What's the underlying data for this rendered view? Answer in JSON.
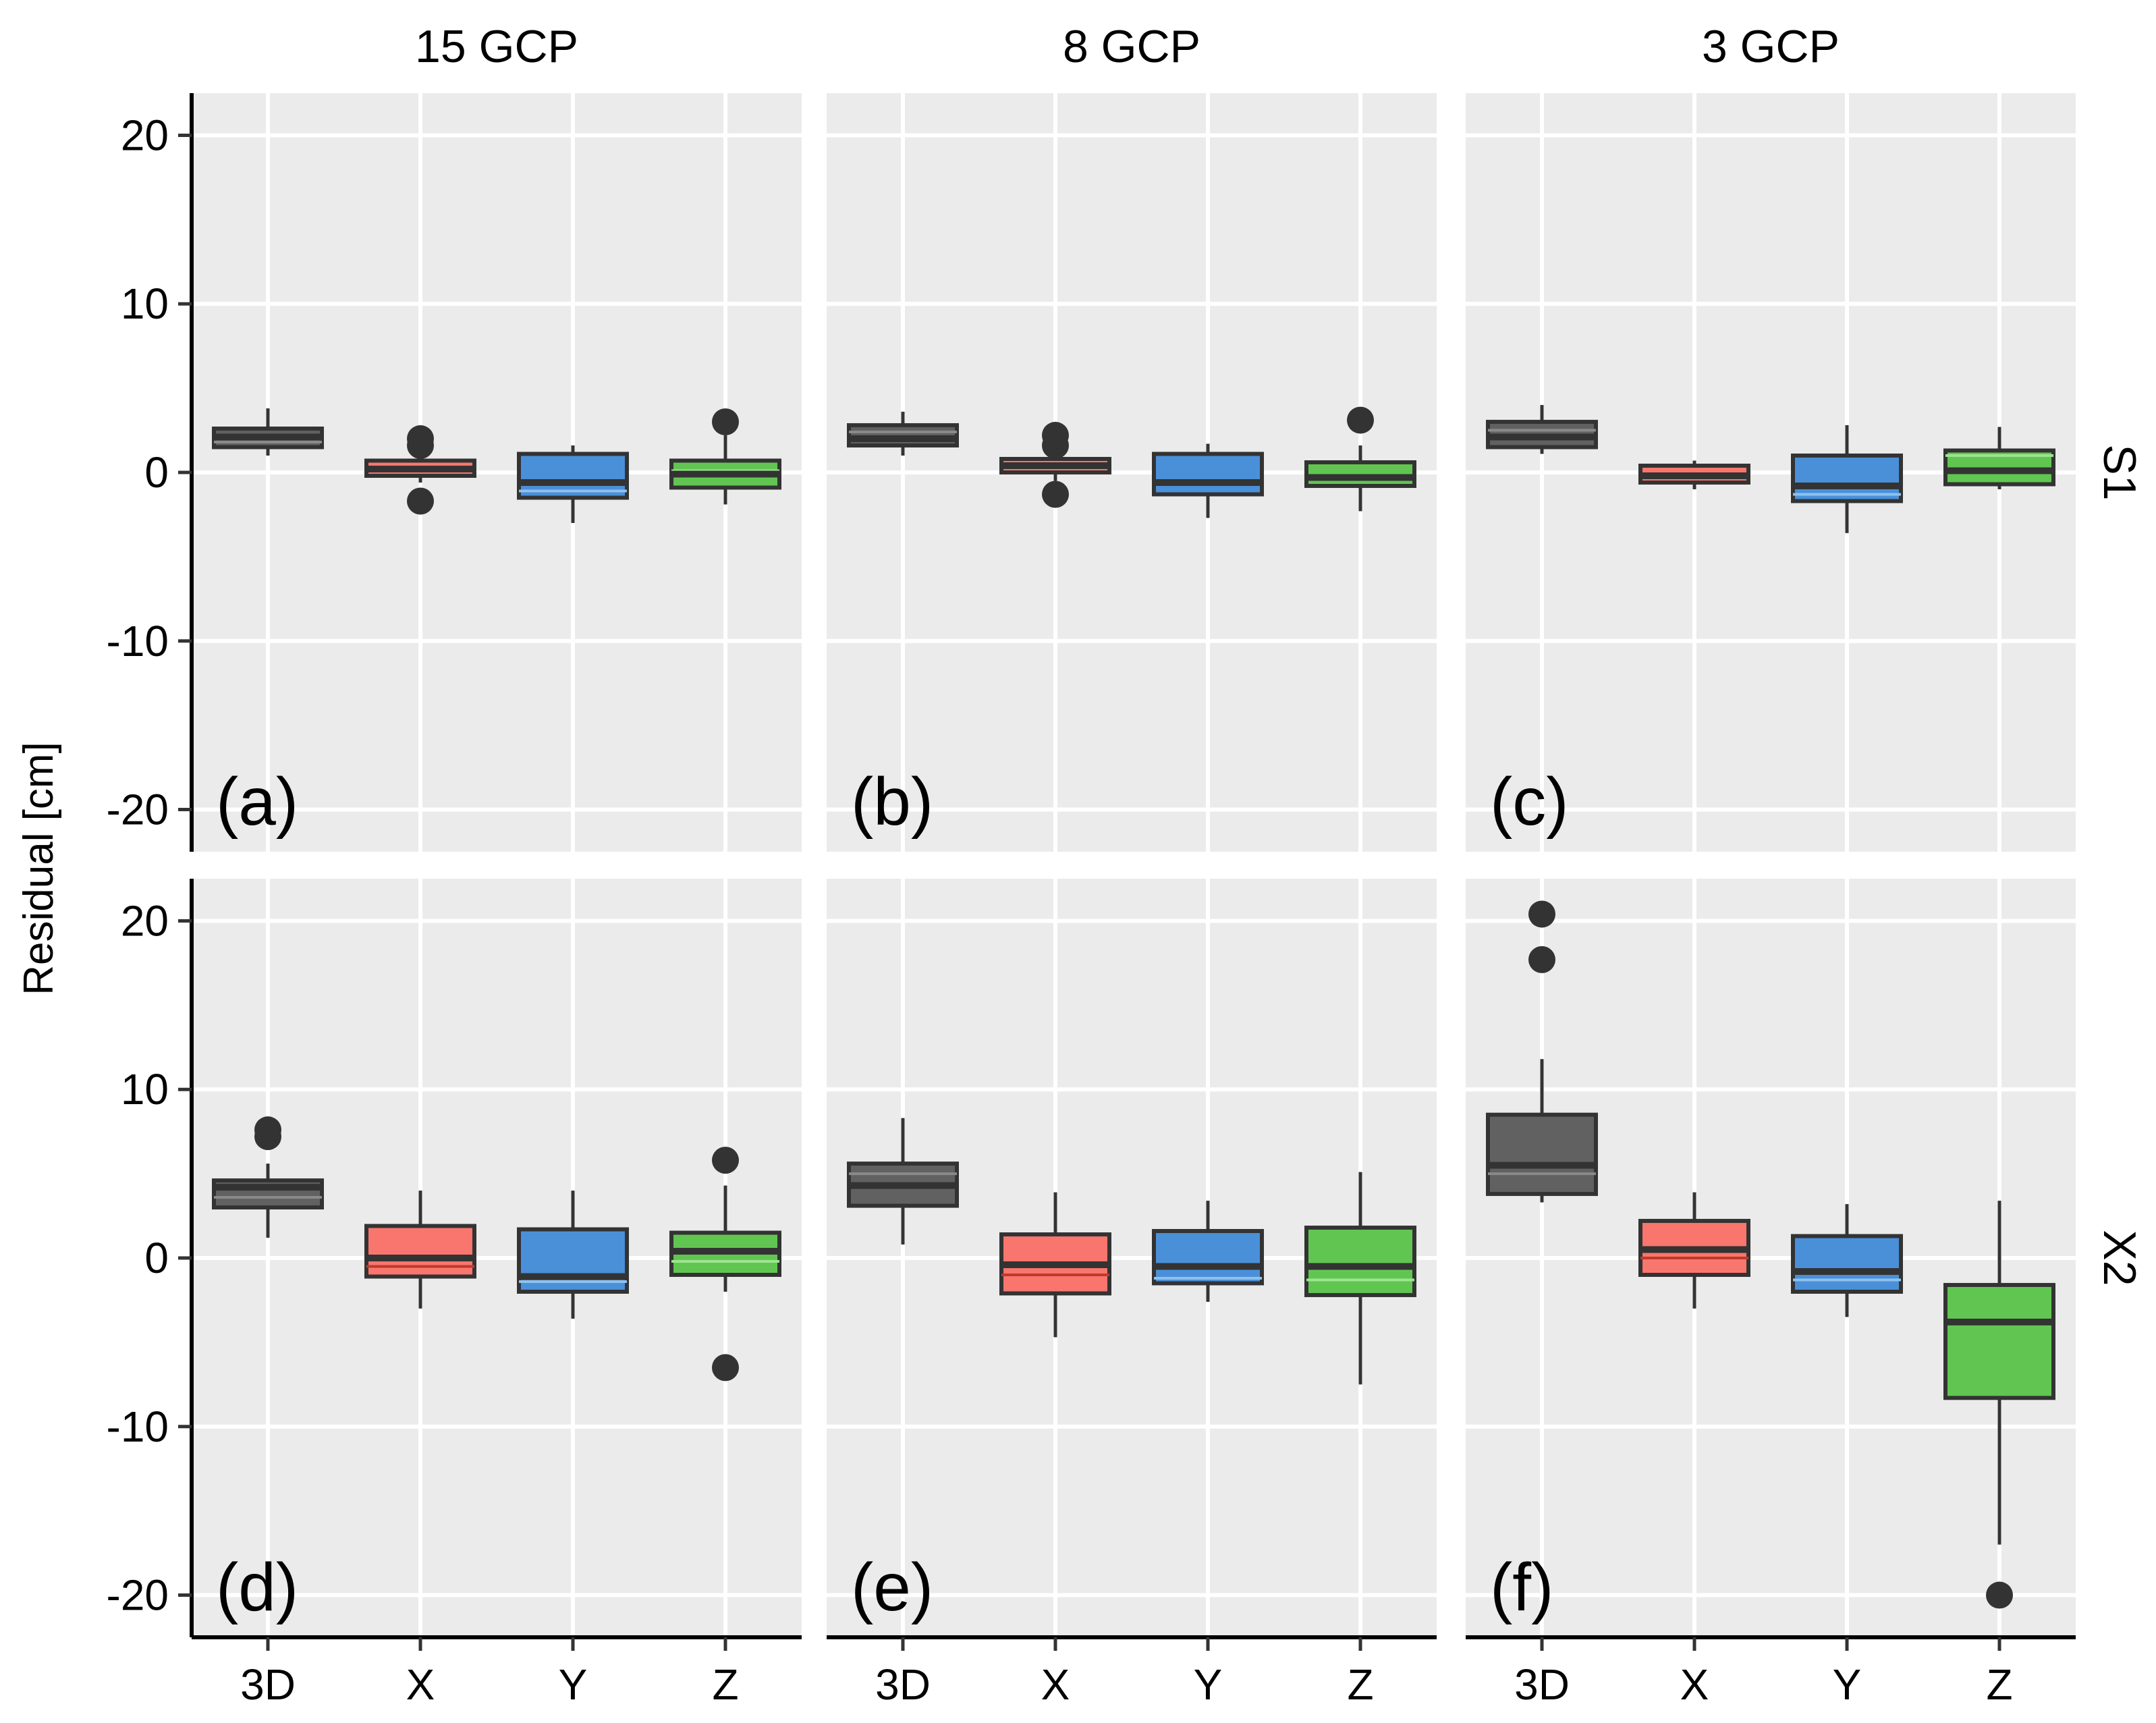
{
  "chart_data": {
    "type": "boxplot",
    "ylabel": "Residual [cm]",
    "xlabel": "",
    "ylim": [
      -22.5,
      22.5
    ],
    "y_ticks": [
      -20,
      -10,
      0,
      10,
      20
    ],
    "y_tick_labels": [
      "-20",
      "-10",
      "0",
      "10",
      "20"
    ],
    "categories": [
      "3D",
      "X",
      "Y",
      "Z"
    ],
    "columns": [
      "15 GCP",
      "8 GCP",
      "3 GCP"
    ],
    "rows": [
      "S1",
      "X2"
    ],
    "colors": {
      "3D": "#616161",
      "X": "#f8766d",
      "Y": "#4a90d9",
      "Z": "#61c651"
    },
    "median_colors": {
      "3D": "#333333",
      "X": "#333333",
      "Y": "#333333",
      "Z": "#333333"
    },
    "mean_colors": {
      "3D": "#8a8a8a",
      "X": "#c0392b",
      "Y": "#8ec1ee",
      "Z": "#9be58f"
    },
    "grid": true,
    "panels": [
      {
        "tag": "(a)",
        "row": "S1",
        "column": "15 GCP",
        "boxes": [
          {
            "category": "3D",
            "whisker_low": 1.0,
            "q1": 1.5,
            "median": 2.1,
            "q3": 2.6,
            "whisker_high": 3.8,
            "mean": 1.8,
            "outliers": []
          },
          {
            "category": "X",
            "whisker_low": -0.6,
            "q1": -0.2,
            "median": 0.2,
            "q3": 0.7,
            "whisker_high": 1.0,
            "mean": 0.2,
            "outliers": [
              1.6,
              2.0,
              -1.7
            ]
          },
          {
            "category": "Y",
            "whisker_low": -3.0,
            "q1": -1.5,
            "median": -0.6,
            "q3": 1.1,
            "whisker_high": 1.6,
            "mean": -1.1,
            "outliers": []
          },
          {
            "category": "Z",
            "whisker_low": -1.9,
            "q1": -0.9,
            "median": -0.1,
            "q3": 0.7,
            "whisker_high": 2.2,
            "mean": 0.1,
            "outliers": [
              3.0
            ]
          }
        ]
      },
      {
        "tag": "(b)",
        "row": "S1",
        "column": "8 GCP",
        "boxes": [
          {
            "category": "3D",
            "whisker_low": 1.0,
            "q1": 1.6,
            "median": 2.0,
            "q3": 2.8,
            "whisker_high": 3.6,
            "mean": 2.4,
            "outliers": []
          },
          {
            "category": "X",
            "whisker_low": -0.5,
            "q1": 0.0,
            "median": 0.4,
            "q3": 0.8,
            "whisker_high": 1.2,
            "mean": 0.4,
            "outliers": [
              1.6,
              2.2,
              -1.3
            ]
          },
          {
            "category": "Y",
            "whisker_low": -2.7,
            "q1": -1.3,
            "median": -0.6,
            "q3": 1.1,
            "whisker_high": 1.7,
            "mean": -0.7,
            "outliers": []
          },
          {
            "category": "Z",
            "whisker_low": -2.3,
            "q1": -0.8,
            "median": -0.3,
            "q3": 0.6,
            "whisker_high": 1.6,
            "mean": -0.3,
            "outliers": [
              3.1
            ]
          }
        ]
      },
      {
        "tag": "(c)",
        "row": "S1",
        "column": "3 GCP",
        "boxes": [
          {
            "category": "3D",
            "whisker_low": 1.1,
            "q1": 1.5,
            "median": 2.1,
            "q3": 3.0,
            "whisker_high": 4.0,
            "mean": 2.5,
            "outliers": []
          },
          {
            "category": "X",
            "whisker_low": -1.0,
            "q1": -0.6,
            "median": -0.2,
            "q3": 0.4,
            "whisker_high": 0.7,
            "mean": -0.2,
            "outliers": []
          },
          {
            "category": "Y",
            "whisker_low": -3.6,
            "q1": -1.7,
            "median": -0.8,
            "q3": 1.0,
            "whisker_high": 2.8,
            "mean": -1.3,
            "outliers": []
          },
          {
            "category": "Z",
            "whisker_low": -1.0,
            "q1": -0.7,
            "median": 0.1,
            "q3": 1.3,
            "whisker_high": 2.7,
            "mean": 1.0,
            "outliers": []
          }
        ]
      },
      {
        "tag": "(d)",
        "row": "X2",
        "column": "15 GCP",
        "boxes": [
          {
            "category": "3D",
            "whisker_low": 1.2,
            "q1": 3.0,
            "median": 4.2,
            "q3": 4.6,
            "whisker_high": 5.6,
            "mean": 3.6,
            "outliers": [
              7.2,
              7.6
            ]
          },
          {
            "category": "X",
            "whisker_low": -3.0,
            "q1": -1.1,
            "median": 0.0,
            "q3": 1.9,
            "whisker_high": 4.0,
            "mean": -0.5,
            "outliers": []
          },
          {
            "category": "Y",
            "whisker_low": -3.6,
            "q1": -2.0,
            "median": -1.1,
            "q3": 1.7,
            "whisker_high": 4.0,
            "mean": -1.4,
            "outliers": []
          },
          {
            "category": "Z",
            "whisker_low": -2.0,
            "q1": -1.0,
            "median": 0.4,
            "q3": 1.5,
            "whisker_high": 4.3,
            "mean": -0.2,
            "outliers": [
              5.8,
              -6.5
            ]
          }
        ]
      },
      {
        "tag": "(e)",
        "row": "X2",
        "column": "8 GCP",
        "boxes": [
          {
            "category": "3D",
            "whisker_low": 0.8,
            "q1": 3.1,
            "median": 4.3,
            "q3": 5.6,
            "whisker_high": 8.3,
            "mean": 5.0,
            "outliers": []
          },
          {
            "category": "X",
            "whisker_low": -4.7,
            "q1": -2.1,
            "median": -0.4,
            "q3": 1.4,
            "whisker_high": 3.9,
            "mean": -1.0,
            "outliers": []
          },
          {
            "category": "Y",
            "whisker_low": -2.6,
            "q1": -1.5,
            "median": -0.5,
            "q3": 1.6,
            "whisker_high": 3.4,
            "mean": -1.2,
            "outliers": []
          },
          {
            "category": "Z",
            "whisker_low": -7.5,
            "q1": -2.2,
            "median": -0.5,
            "q3": 1.8,
            "whisker_high": 5.1,
            "mean": -1.3,
            "outliers": []
          }
        ]
      },
      {
        "tag": "(f)",
        "row": "X2",
        "column": "3 GCP",
        "boxes": [
          {
            "category": "3D",
            "whisker_low": 3.3,
            "q1": 3.8,
            "median": 5.5,
            "q3": 8.5,
            "whisker_high": 11.8,
            "mean": 5.0,
            "outliers": [
              17.7,
              20.4
            ]
          },
          {
            "category": "X",
            "whisker_low": -3.0,
            "q1": -1.0,
            "median": 0.5,
            "q3": 2.2,
            "whisker_high": 3.9,
            "mean": 0.0,
            "outliers": []
          },
          {
            "category": "Y",
            "whisker_low": -3.5,
            "q1": -2.0,
            "median": -0.8,
            "q3": 1.3,
            "whisker_high": 3.2,
            "mean": -1.3,
            "outliers": []
          },
          {
            "category": "Z",
            "whisker_low": -17.0,
            "q1": -8.3,
            "median": -3.8,
            "q3": -1.6,
            "whisker_high": 3.4,
            "mean": -3.8,
            "outliers": [
              -20.0
            ]
          }
        ]
      }
    ]
  }
}
